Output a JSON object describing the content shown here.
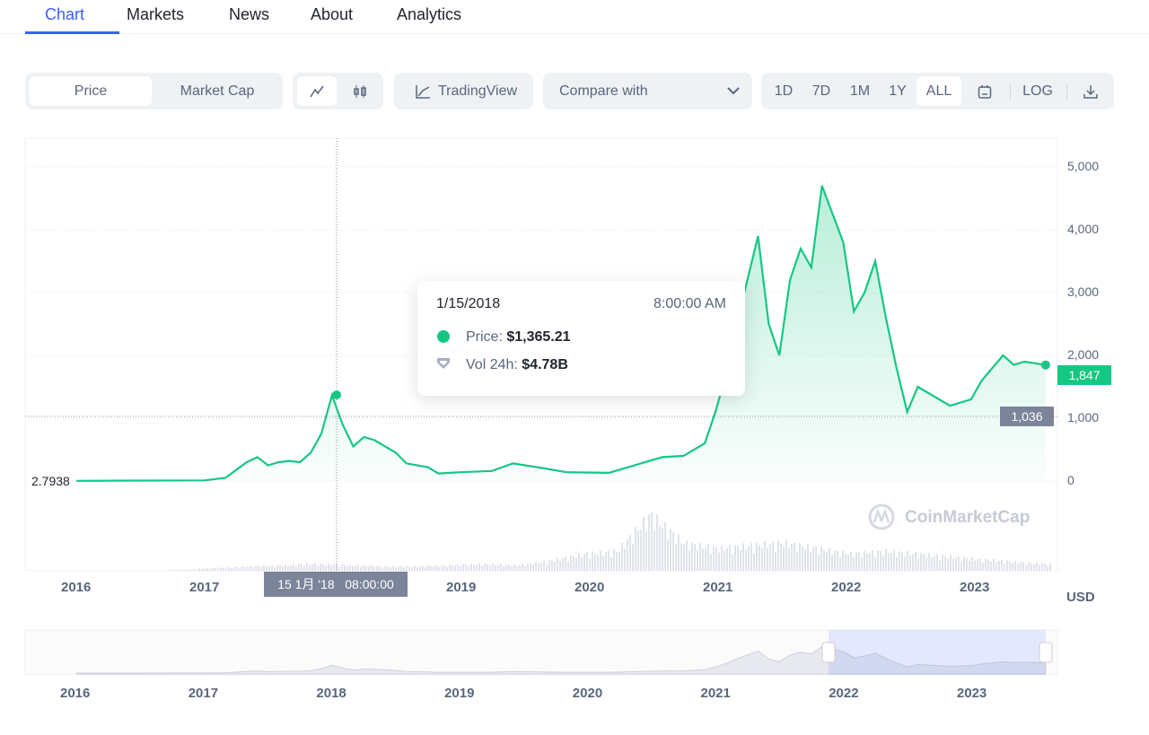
{
  "tabs": [
    {
      "label": "Chart",
      "active": true
    },
    {
      "label": "Markets"
    },
    {
      "label": "News"
    },
    {
      "label": "About"
    },
    {
      "label": "Analytics"
    }
  ],
  "toolbar": {
    "price": "Price",
    "market_cap": "Market Cap",
    "line_icon": "line-chart-icon",
    "candle_icon": "candlestick-icon",
    "tradingview": "TradingView",
    "compare": "Compare with",
    "ranges": [
      "1D",
      "7D",
      "1M",
      "1Y",
      "ALL"
    ],
    "active_range": "ALL",
    "log": "LOG",
    "calendar_icon": "calendar-icon",
    "download_icon": "download-icon"
  },
  "tooltip": {
    "date": "1/15/2018",
    "time": "8:00:00 AM",
    "price_label": "Price:",
    "price": "$1,365.21",
    "vol_label": "Vol 24h:",
    "vol": "$4.78B"
  },
  "crosshair_label": "15 1月 '18   08:00:00",
  "watermark": "CoinMarketCap",
  "colors": {
    "accent": "#3861fb",
    "line": "#16c784",
    "grey_tag": "#7b8499"
  },
  "chart_data": {
    "type": "area",
    "ylim": [
      0,
      5000
    ],
    "yticks": [
      "0",
      "1,000",
      "2,000",
      "3,000",
      "4,000",
      "5,000"
    ],
    "xticks": [
      "2016",
      "2017",
      "2018",
      "2019",
      "2020",
      "2021",
      "2022",
      "2023"
    ],
    "unit": "USD",
    "current_price": "1,847",
    "crosshair_price": "1,036",
    "start_value": "2.7938",
    "x": [
      "2016-01",
      "2017-01",
      "2017-03",
      "2017-05",
      "2017-06",
      "2017-07",
      "2017-08",
      "2017-09",
      "2017-10",
      "2017-11",
      "2017-12",
      "2018-01",
      "2018-02",
      "2018-03",
      "2018-04",
      "2018-05",
      "2018-07",
      "2018-08",
      "2018-10",
      "2018-11",
      "2019-01",
      "2019-04",
      "2019-06",
      "2019-09",
      "2019-11",
      "2020-03",
      "2020-05",
      "2020-08",
      "2020-10",
      "2020-12",
      "2021-01",
      "2021-02",
      "2021-03",
      "2021-05",
      "2021-06",
      "2021-07",
      "2021-08",
      "2021-09",
      "2021-10",
      "2021-11",
      "2022-01",
      "2022-02",
      "2022-03",
      "2022-04",
      "2022-05",
      "2022-06",
      "2022-07",
      "2022-08",
      "2022-10",
      "2022-11",
      "2023-01",
      "2023-02",
      "2023-03",
      "2023-04",
      "2023-05",
      "2023-06",
      "2023-08"
    ],
    "values": [
      2.79,
      10,
      50,
      300,
      380,
      250,
      300,
      320,
      300,
      450,
      750,
      1365,
      900,
      550,
      700,
      650,
      450,
      280,
      220,
      120,
      140,
      160,
      280,
      200,
      140,
      130,
      230,
      380,
      400,
      600,
      1100,
      1700,
      2500,
      3900,
      2500,
      2000,
      3200,
      3700,
      3400,
      4700,
      3800,
      2700,
      3000,
      3500,
      2600,
      1800,
      1100,
      1500,
      1300,
      1200,
      1300,
      1600,
      1800,
      2000,
      1850,
      1900,
      1847
    ],
    "volume_relative": [
      0,
      0,
      0,
      0.02,
      0.05,
      0.08,
      0.1,
      0.12,
      0.1,
      0.08,
      0.08,
      0.1,
      0.12,
      0.1,
      0.18,
      0.3,
      0.35,
      1.0,
      0.5,
      0.4,
      0.45,
      0.5,
      0.4,
      0.3,
      0.35,
      0.3,
      0.25,
      0.2,
      0.15,
      0.12
    ]
  },
  "navigator": {
    "xticks": [
      "2016",
      "2017",
      "2018",
      "2019",
      "2020",
      "2021",
      "2022",
      "2023"
    ],
    "selected": [
      "2021-11",
      "2023-08"
    ]
  }
}
